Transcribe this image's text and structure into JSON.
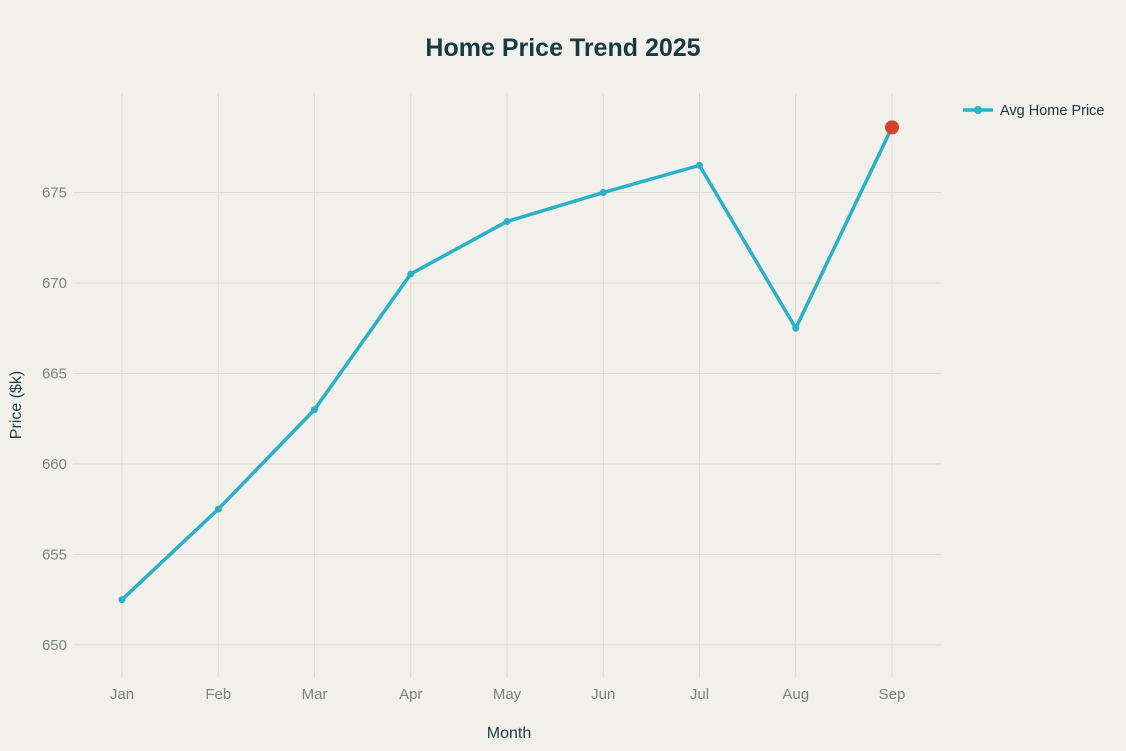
{
  "chart_data": {
    "type": "line",
    "title": "Home Price Trend 2025",
    "xlabel": "Month",
    "ylabel": "Price ($k)",
    "categories": [
      "Jan",
      "Feb",
      "Mar",
      "Apr",
      "May",
      "Jun",
      "Jul",
      "Aug",
      "Sep"
    ],
    "series": [
      {
        "name": "Avg Home Price",
        "values": [
          652.5,
          657.5,
          663.0,
          670.5,
          673.4,
          675.0,
          676.5,
          667.5,
          678.6
        ]
      }
    ],
    "yticks": [
      650,
      655,
      660,
      665,
      670,
      675
    ],
    "ylim": [
      648.5,
      680.5
    ],
    "grid": true,
    "legend_position": "upper right",
    "highlight_point": {
      "category": "Sep",
      "index": 8,
      "value": 678.6
    }
  },
  "colors": {
    "background": "#f1f0ea",
    "grid": "#dcdcd4",
    "tick_label": "#7b8381",
    "title": "#173a40",
    "axis_label": "#1f3d44",
    "legend_text": "#22353f",
    "line": "#2ab1c7",
    "highlight": "#d6402f"
  }
}
